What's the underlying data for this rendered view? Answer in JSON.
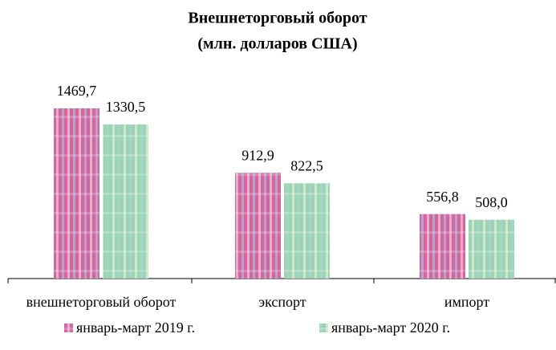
{
  "chart_data": {
    "type": "bar",
    "title": "Внешнеторговый оборот",
    "subtitle": "(млн. долларов США)",
    "categories": [
      "внешнеторговый оборот",
      "экспорт",
      "импорт"
    ],
    "series": [
      {
        "name": "январь-март 2019 г.",
        "color": "#d2679f",
        "values": [
          1469.7,
          912.9,
          556.8
        ],
        "value_labels": [
          "1469,7",
          "912,9",
          "556,8"
        ]
      },
      {
        "name": "январь-март 2020 г.",
        "color": "#9dd3ad",
        "values": [
          1330.5,
          822.5,
          508.0
        ],
        "value_labels": [
          "1330,5",
          "822,5",
          "508,0"
        ]
      }
    ]
  }
}
